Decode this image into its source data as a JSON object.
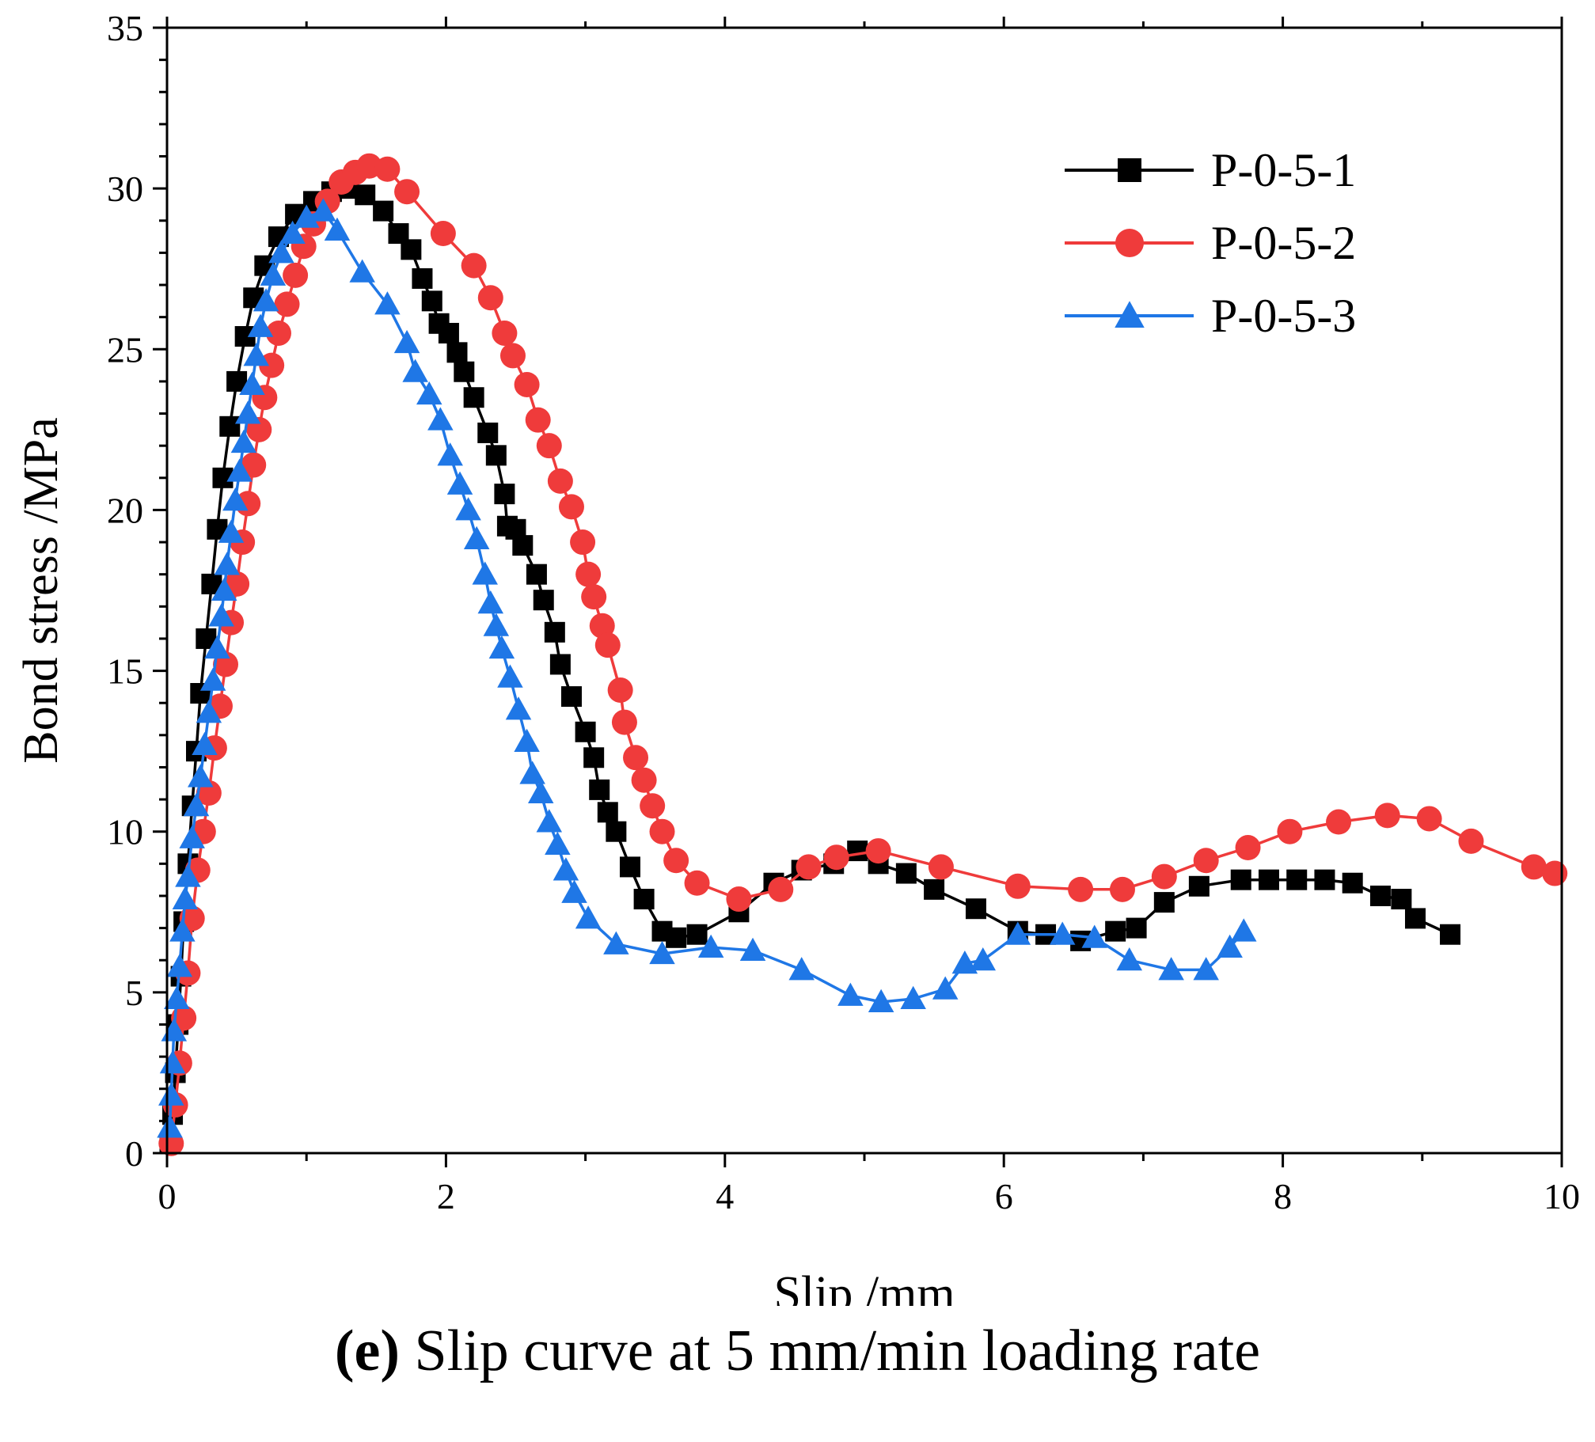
{
  "colors": {
    "s1": "#000000",
    "s2": "#ef3b3b",
    "s3": "#1f77e6"
  },
  "chart_data": {
    "type": "line",
    "title": "",
    "xlabel": "Slip /mm",
    "ylabel": "Bond stress /MPa",
    "xlim": [
      0,
      10
    ],
    "ylim": [
      0,
      35
    ],
    "xticks": [
      0,
      2,
      4,
      6,
      8,
      10
    ],
    "yticks": [
      0,
      5,
      10,
      15,
      20,
      25,
      30,
      35
    ],
    "legend_position": "top-right",
    "series": [
      {
        "name": "P-0-5-1",
        "marker": "square",
        "color_key": "s1",
        "points": [
          [
            0.02,
            0.3
          ],
          [
            0.04,
            1.2
          ],
          [
            0.06,
            2.5
          ],
          [
            0.08,
            4.0
          ],
          [
            0.1,
            5.5
          ],
          [
            0.12,
            7.2
          ],
          [
            0.15,
            9.0
          ],
          [
            0.18,
            10.8
          ],
          [
            0.21,
            12.5
          ],
          [
            0.24,
            14.3
          ],
          [
            0.28,
            16.0
          ],
          [
            0.32,
            17.7
          ],
          [
            0.36,
            19.4
          ],
          [
            0.4,
            21.0
          ],
          [
            0.45,
            22.6
          ],
          [
            0.5,
            24.0
          ],
          [
            0.56,
            25.4
          ],
          [
            0.62,
            26.6
          ],
          [
            0.7,
            27.6
          ],
          [
            0.8,
            28.5
          ],
          [
            0.92,
            29.2
          ],
          [
            1.05,
            29.6
          ],
          [
            1.18,
            29.9
          ],
          [
            1.3,
            30.0
          ],
          [
            1.42,
            29.8
          ],
          [
            1.55,
            29.3
          ],
          [
            1.66,
            28.6
          ],
          [
            1.75,
            28.1
          ],
          [
            1.83,
            27.2
          ],
          [
            1.9,
            26.5
          ],
          [
            1.95,
            25.8
          ],
          [
            2.02,
            25.5
          ],
          [
            2.08,
            24.9
          ],
          [
            2.13,
            24.3
          ],
          [
            2.2,
            23.5
          ],
          [
            2.3,
            22.4
          ],
          [
            2.36,
            21.7
          ],
          [
            2.42,
            20.5
          ],
          [
            2.44,
            19.5
          ],
          [
            2.5,
            19.4
          ],
          [
            2.55,
            18.9
          ],
          [
            2.65,
            18.0
          ],
          [
            2.7,
            17.2
          ],
          [
            2.78,
            16.2
          ],
          [
            2.82,
            15.2
          ],
          [
            2.9,
            14.2
          ],
          [
            3.0,
            13.1
          ],
          [
            3.06,
            12.3
          ],
          [
            3.1,
            11.3
          ],
          [
            3.16,
            10.6
          ],
          [
            3.22,
            10.0
          ],
          [
            3.32,
            8.9
          ],
          [
            3.42,
            7.9
          ],
          [
            3.55,
            6.9
          ],
          [
            3.65,
            6.7
          ],
          [
            3.8,
            6.8
          ],
          [
            4.1,
            7.5
          ],
          [
            4.35,
            8.4
          ],
          [
            4.55,
            8.8
          ],
          [
            4.78,
            9.0
          ],
          [
            4.95,
            9.4
          ],
          [
            5.1,
            9.0
          ],
          [
            5.3,
            8.7
          ],
          [
            5.5,
            8.2
          ],
          [
            5.8,
            7.6
          ],
          [
            6.1,
            6.9
          ],
          [
            6.3,
            6.8
          ],
          [
            6.55,
            6.6
          ],
          [
            6.8,
            6.9
          ],
          [
            6.95,
            7.0
          ],
          [
            7.15,
            7.8
          ],
          [
            7.4,
            8.3
          ],
          [
            7.7,
            8.5
          ],
          [
            7.9,
            8.5
          ],
          [
            8.1,
            8.5
          ],
          [
            8.3,
            8.5
          ],
          [
            8.5,
            8.4
          ],
          [
            8.7,
            8.0
          ],
          [
            8.85,
            7.9
          ],
          [
            8.95,
            7.3
          ],
          [
            9.2,
            6.8
          ]
        ]
      },
      {
        "name": "P-0-5-2",
        "marker": "circle",
        "color_key": "s2",
        "points": [
          [
            0.03,
            0.3
          ],
          [
            0.06,
            1.5
          ],
          [
            0.09,
            2.8
          ],
          [
            0.12,
            4.2
          ],
          [
            0.15,
            5.6
          ],
          [
            0.18,
            7.3
          ],
          [
            0.22,
            8.8
          ],
          [
            0.26,
            10.0
          ],
          [
            0.3,
            11.2
          ],
          [
            0.34,
            12.6
          ],
          [
            0.38,
            13.9
          ],
          [
            0.42,
            15.2
          ],
          [
            0.46,
            16.5
          ],
          [
            0.5,
            17.7
          ],
          [
            0.54,
            19.0
          ],
          [
            0.58,
            20.2
          ],
          [
            0.62,
            21.4
          ],
          [
            0.66,
            22.5
          ],
          [
            0.7,
            23.5
          ],
          [
            0.75,
            24.5
          ],
          [
            0.8,
            25.5
          ],
          [
            0.86,
            26.4
          ],
          [
            0.92,
            27.3
          ],
          [
            0.98,
            28.2
          ],
          [
            1.05,
            28.9
          ],
          [
            1.15,
            29.6
          ],
          [
            1.25,
            30.2
          ],
          [
            1.35,
            30.5
          ],
          [
            1.45,
            30.7
          ],
          [
            1.58,
            30.6
          ],
          [
            1.72,
            29.9
          ],
          [
            1.98,
            28.6
          ],
          [
            2.2,
            27.6
          ],
          [
            2.32,
            26.6
          ],
          [
            2.42,
            25.5
          ],
          [
            2.48,
            24.8
          ],
          [
            2.58,
            23.9
          ],
          [
            2.66,
            22.8
          ],
          [
            2.74,
            22.0
          ],
          [
            2.82,
            20.9
          ],
          [
            2.9,
            20.1
          ],
          [
            2.98,
            19.0
          ],
          [
            3.02,
            18.0
          ],
          [
            3.06,
            17.3
          ],
          [
            3.12,
            16.4
          ],
          [
            3.16,
            15.8
          ],
          [
            3.25,
            14.4
          ],
          [
            3.28,
            13.4
          ],
          [
            3.36,
            12.3
          ],
          [
            3.42,
            11.6
          ],
          [
            3.48,
            10.8
          ],
          [
            3.55,
            10.0
          ],
          [
            3.65,
            9.1
          ],
          [
            3.8,
            8.4
          ],
          [
            4.1,
            7.9
          ],
          [
            4.4,
            8.2
          ],
          [
            4.6,
            8.9
          ],
          [
            4.8,
            9.2
          ],
          [
            5.1,
            9.4
          ],
          [
            5.55,
            8.9
          ],
          [
            6.1,
            8.3
          ],
          [
            6.55,
            8.2
          ],
          [
            6.85,
            8.2
          ],
          [
            7.15,
            8.6
          ],
          [
            7.45,
            9.1
          ],
          [
            7.75,
            9.5
          ],
          [
            8.05,
            10.0
          ],
          [
            8.4,
            10.3
          ],
          [
            8.75,
            10.5
          ],
          [
            9.05,
            10.4
          ],
          [
            9.35,
            9.7
          ],
          [
            9.8,
            8.9
          ],
          [
            9.95,
            8.7
          ]
        ]
      },
      {
        "name": "P-0-5-3",
        "marker": "triangle",
        "color_key": "s3",
        "points": [
          [
            0.02,
            0.8
          ],
          [
            0.03,
            1.8
          ],
          [
            0.04,
            2.8
          ],
          [
            0.05,
            3.8
          ],
          [
            0.07,
            4.8
          ],
          [
            0.09,
            5.8
          ],
          [
            0.11,
            6.9
          ],
          [
            0.13,
            7.9
          ],
          [
            0.15,
            8.6
          ],
          [
            0.18,
            9.8
          ],
          [
            0.21,
            10.8
          ],
          [
            0.24,
            11.7
          ],
          [
            0.27,
            12.7
          ],
          [
            0.3,
            13.7
          ],
          [
            0.33,
            14.7
          ],
          [
            0.36,
            15.7
          ],
          [
            0.39,
            16.7
          ],
          [
            0.41,
            17.5
          ],
          [
            0.43,
            18.3
          ],
          [
            0.46,
            19.3
          ],
          [
            0.49,
            20.3
          ],
          [
            0.52,
            21.2
          ],
          [
            0.55,
            22.1
          ],
          [
            0.58,
            23.0
          ],
          [
            0.61,
            23.9
          ],
          [
            0.64,
            24.8
          ],
          [
            0.67,
            25.7
          ],
          [
            0.71,
            26.5
          ],
          [
            0.76,
            27.3
          ],
          [
            0.82,
            28.0
          ],
          [
            0.9,
            28.6
          ],
          [
            1.0,
            29.1
          ],
          [
            1.12,
            29.3
          ],
          [
            1.22,
            28.7
          ],
          [
            1.4,
            27.4
          ],
          [
            1.58,
            26.4
          ],
          [
            1.72,
            25.2
          ],
          [
            1.78,
            24.3
          ],
          [
            1.88,
            23.6
          ],
          [
            1.96,
            22.8
          ],
          [
            2.03,
            21.7
          ],
          [
            2.1,
            20.8
          ],
          [
            2.16,
            20.0
          ],
          [
            2.22,
            19.1
          ],
          [
            2.28,
            18.0
          ],
          [
            2.32,
            17.1
          ],
          [
            2.36,
            16.4
          ],
          [
            2.4,
            15.7
          ],
          [
            2.46,
            14.8
          ],
          [
            2.52,
            13.8
          ],
          [
            2.58,
            12.8
          ],
          [
            2.62,
            11.8
          ],
          [
            2.68,
            11.2
          ],
          [
            2.74,
            10.3
          ],
          [
            2.8,
            9.6
          ],
          [
            2.86,
            8.8
          ],
          [
            2.92,
            8.1
          ],
          [
            3.02,
            7.3
          ],
          [
            3.22,
            6.5
          ],
          [
            3.55,
            6.2
          ],
          [
            3.9,
            6.4
          ],
          [
            4.2,
            6.3
          ],
          [
            4.55,
            5.7
          ],
          [
            4.9,
            4.9
          ],
          [
            5.12,
            4.7
          ],
          [
            5.35,
            4.8
          ],
          [
            5.58,
            5.1
          ],
          [
            5.72,
            5.9
          ],
          [
            5.85,
            6.0
          ],
          [
            6.1,
            6.8
          ],
          [
            6.42,
            6.8
          ],
          [
            6.65,
            6.7
          ],
          [
            6.9,
            6.0
          ],
          [
            7.2,
            5.7
          ],
          [
            7.45,
            5.7
          ],
          [
            7.62,
            6.4
          ],
          [
            7.72,
            6.9
          ]
        ]
      }
    ]
  },
  "caption": {
    "label": "(e)",
    "text": "Slip curve at 5 mm/min loading rate"
  }
}
